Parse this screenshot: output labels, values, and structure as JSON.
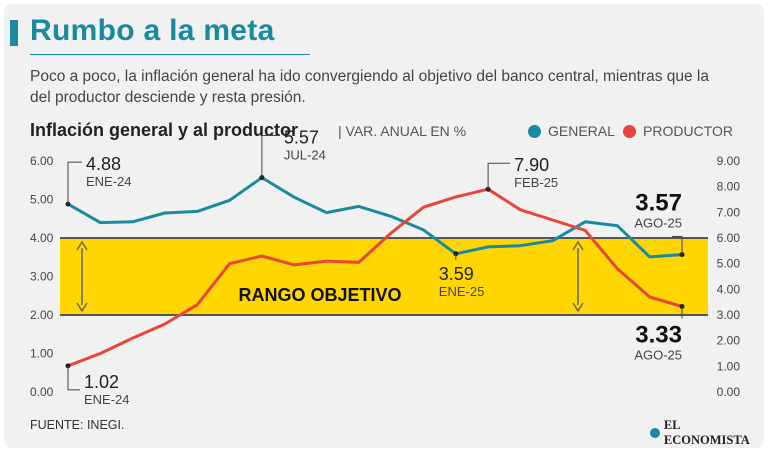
{
  "header": {
    "title": "Rumbo a la meta",
    "subtitle": "Poco a poco, la inflación general ha ido convergiendo al objetivo del banco central, mientras que la del productor desciende y resta presión."
  },
  "chart_heading": {
    "title": "Inflación general y al productor",
    "unit": "| VAR. ANUAL EN %"
  },
  "legend": {
    "general": "GENERAL",
    "productor": "PRODUCTOR"
  },
  "footer": {
    "source": "FUENTE: INEGI.",
    "brand": "EL ECONOMISTA"
  },
  "colors": {
    "general": "#1a8aa0",
    "productor": "#e8453c",
    "band": "#ffd600",
    "accent": "#1a8aa0"
  },
  "chart_data": {
    "type": "line",
    "months": 20,
    "yleft": {
      "range": [
        0,
        6
      ],
      "ticks": [
        "0.00",
        "1.00",
        "2.00",
        "3.00",
        "4.00",
        "5.00",
        "6.00"
      ]
    },
    "yright": {
      "range": [
        0,
        9
      ],
      "ticks": [
        "0.00",
        "1.00",
        "2.00",
        "3.00",
        "4.00",
        "5.00",
        "6.00",
        "7.00",
        "8.00",
        "9.00"
      ]
    },
    "target_band": {
      "low": 2,
      "high": 4,
      "label": "RANGO OBJETIVO"
    },
    "series": [
      {
        "name": "GENERAL",
        "axis": "left",
        "values": [
          4.88,
          4.4,
          4.42,
          4.65,
          4.69,
          4.98,
          5.57,
          5.06,
          4.66,
          4.82,
          4.56,
          4.21,
          3.59,
          3.77,
          3.8,
          3.93,
          4.42,
          4.32,
          3.51,
          3.57
        ]
      },
      {
        "name": "PRODUCTOR",
        "axis": "right",
        "values": [
          1.02,
          1.5,
          2.1,
          2.65,
          3.4,
          5.0,
          5.3,
          4.95,
          5.1,
          5.05,
          6.2,
          7.2,
          7.6,
          7.9,
          7.1,
          6.7,
          6.3,
          4.8,
          3.7,
          3.33
        ]
      }
    ],
    "annotations": [
      {
        "id": "gen_start",
        "series": 0,
        "index": 0,
        "value": "4.88",
        "date": "ENE-24"
      },
      {
        "id": "gen_peak",
        "series": 0,
        "index": 6,
        "value": "5.57",
        "date": "JUL-24"
      },
      {
        "id": "gen_low",
        "series": 0,
        "index": 12,
        "value": "3.59",
        "date": "ENE-25"
      },
      {
        "id": "gen_end",
        "series": 0,
        "index": 19,
        "value": "3.57",
        "date": "AGO-25"
      },
      {
        "id": "prod_start",
        "series": 1,
        "index": 0,
        "value": "1.02",
        "date": "ENE-24"
      },
      {
        "id": "prod_peak",
        "series": 1,
        "index": 13,
        "value": "7.90",
        "date": "FEB-25"
      },
      {
        "id": "prod_end",
        "series": 1,
        "index": 19,
        "value": "3.33",
        "date": "AGO-25"
      }
    ]
  }
}
